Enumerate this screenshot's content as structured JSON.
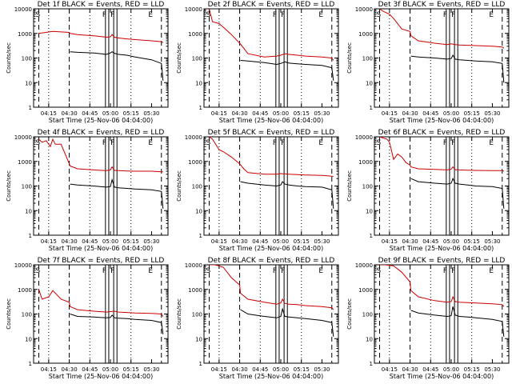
{
  "figure": {
    "ylabel": "Counts/sec",
    "xlabel": "Start Time (25-Nov-06 04:04:00)",
    "xticks": [
      "04:15",
      "04:30",
      "04:45",
      "05:00",
      "05:15",
      "05:30"
    ],
    "yticks": [
      "1",
      "10",
      "100",
      "1000",
      "10000"
    ],
    "marker_labels": [
      "S",
      "F",
      "F",
      "E"
    ]
  },
  "chart_data": [
    {
      "type": "line",
      "title": "Det 1f BLACK = Events, RED = LLD",
      "xlim": [
        4.0667,
        5.7
      ],
      "ylim": [
        1,
        10000
      ],
      "yscale": "log",
      "series": [
        {
          "name": "Events",
          "color": "#000000",
          "x": [
            4.13,
            4.5,
            4.51,
            4.6,
            4.8,
            4.95,
            5.0,
            5.02,
            5.05,
            5.1,
            5.2,
            5.3,
            5.5,
            5.62,
            5.64
          ],
          "y": [
            null,
            null,
            180,
            170,
            160,
            140,
            160,
            180,
            155,
            140,
            130,
            110,
            85,
            60,
            12
          ]
        },
        {
          "name": "LLD",
          "color": "#cc0000",
          "x": [
            4.13,
            4.3,
            4.5,
            4.51,
            4.6,
            4.8,
            4.95,
            5.0,
            5.02,
            5.05,
            5.1,
            5.2,
            5.3,
            5.5,
            5.62,
            5.64
          ],
          "y": [
            1000,
            1200,
            1100,
            1000,
            900,
            800,
            700,
            730,
            900,
            700,
            650,
            600,
            560,
            500,
            460,
            420
          ]
        }
      ]
    },
    {
      "type": "line",
      "title": "Det 2f BLACK = Events, RED = LLD",
      "xlim": [
        4.0667,
        5.7
      ],
      "ylim": [
        1,
        10000
      ],
      "yscale": "log",
      "series": [
        {
          "name": "Events",
          "color": "#000000",
          "x": [
            4.5,
            4.51,
            4.6,
            4.8,
            4.95,
            5.0,
            5.05,
            5.1,
            5.2,
            5.3,
            5.5,
            5.62,
            5.64
          ],
          "y": [
            null,
            80,
            75,
            65,
            55,
            60,
            70,
            62,
            58,
            55,
            50,
            40,
            12
          ]
        },
        {
          "name": "LLD",
          "color": "#cc0000",
          "x": [
            4.13,
            4.17,
            4.25,
            4.3,
            4.4,
            4.5,
            4.55,
            4.6,
            4.8,
            4.95,
            5.0,
            5.05,
            5.1,
            5.2,
            5.3,
            5.5,
            5.62,
            5.64
          ],
          "y": [
            10000,
            3000,
            2500,
            1800,
            900,
            400,
            250,
            150,
            110,
            120,
            130,
            150,
            140,
            130,
            120,
            110,
            100,
            80
          ]
        }
      ]
    },
    {
      "type": "line",
      "title": "Det 3f BLACK = Events, RED = LLD",
      "xlim": [
        4.0667,
        5.7
      ],
      "ylim": [
        1,
        10000
      ],
      "yscale": "log",
      "series": [
        {
          "name": "Events",
          "color": "#000000",
          "x": [
            4.5,
            4.51,
            4.6,
            4.8,
            4.95,
            5.0,
            5.02,
            5.05,
            5.1,
            5.2,
            5.3,
            5.5,
            5.62,
            5.64
          ],
          "y": [
            null,
            120,
            110,
            100,
            90,
            95,
            130,
            90,
            85,
            80,
            75,
            70,
            60,
            10
          ]
        },
        {
          "name": "LLD",
          "color": "#cc0000",
          "x": [
            4.13,
            4.17,
            4.25,
            4.3,
            4.4,
            4.5,
            4.51,
            4.6,
            4.8,
            4.95,
            5.0,
            5.05,
            5.1,
            5.2,
            5.3,
            5.5,
            5.62,
            5.64
          ],
          "y": [
            10000,
            8000,
            6000,
            4000,
            1500,
            1200,
            800,
            500,
            400,
            350,
            380,
            350,
            340,
            330,
            320,
            300,
            280,
            250
          ]
        }
      ]
    },
    {
      "type": "line",
      "title": "Det 4f BLACK = Events, RED = LLD",
      "xlim": [
        4.0667,
        5.7
      ],
      "ylim": [
        1,
        10000
      ],
      "yscale": "log",
      "series": [
        {
          "name": "Events",
          "color": "#000000",
          "x": [
            4.5,
            4.51,
            4.6,
            4.8,
            4.95,
            5.0,
            5.02,
            5.05,
            5.1,
            5.2,
            5.3,
            5.5,
            5.62,
            5.64
          ],
          "y": [
            null,
            120,
            110,
            100,
            90,
            95,
            180,
            90,
            85,
            80,
            75,
            70,
            60,
            12
          ]
        },
        {
          "name": "LLD",
          "color": "#cc0000",
          "x": [
            4.13,
            4.17,
            4.22,
            4.27,
            4.3,
            4.33,
            4.4,
            4.5,
            4.51,
            4.6,
            4.8,
            4.95,
            5.0,
            5.02,
            5.05,
            5.1,
            5.2,
            5.3,
            5.5,
            5.62,
            5.64
          ],
          "y": [
            8000,
            6000,
            7000,
            4000,
            8000,
            5000,
            5000,
            800,
            650,
            500,
            450,
            420,
            450,
            600,
            430,
            420,
            410,
            400,
            400,
            380,
            380
          ]
        }
      ]
    },
    {
      "type": "line",
      "title": "Det 5f BLACK = Events, RED = LLD",
      "xlim": [
        4.0667,
        5.7
      ],
      "ylim": [
        1,
        10000
      ],
      "yscale": "log",
      "series": [
        {
          "name": "Events",
          "color": "#000000",
          "x": [
            4.5,
            4.51,
            4.6,
            4.8,
            4.95,
            5.0,
            5.02,
            5.05,
            5.1,
            5.2,
            5.3,
            5.5,
            5.62,
            5.64
          ],
          "y": [
            null,
            150,
            130,
            110,
            100,
            110,
            150,
            120,
            110,
            100,
            95,
            90,
            70,
            12
          ]
        },
        {
          "name": "LLD",
          "color": "#cc0000",
          "x": [
            4.13,
            4.17,
            4.25,
            4.3,
            4.4,
            4.5,
            4.55,
            4.6,
            4.8,
            4.95,
            5.0,
            5.05,
            5.1,
            5.2,
            5.3,
            5.5,
            5.62,
            5.64
          ],
          "y": [
            10000,
            8000,
            3000,
            2500,
            1500,
            800,
            500,
            350,
            300,
            300,
            320,
            310,
            300,
            290,
            280,
            270,
            250,
            240
          ]
        }
      ]
    },
    {
      "type": "line",
      "title": "Det 6f BLACK = Events, RED = LLD",
      "xlim": [
        4.0667,
        5.7
      ],
      "ylim": [
        1,
        10000
      ],
      "yscale": "log",
      "series": [
        {
          "name": "Events",
          "color": "#000000",
          "x": [
            4.5,
            4.51,
            4.6,
            4.8,
            4.95,
            5.0,
            5.02,
            5.05,
            5.1,
            5.2,
            5.3,
            5.5,
            5.62,
            5.64
          ],
          "y": [
            null,
            200,
            150,
            130,
            120,
            130,
            200,
            130,
            120,
            110,
            100,
            95,
            80,
            12
          ]
        },
        {
          "name": "LLD",
          "color": "#cc0000",
          "x": [
            4.13,
            4.17,
            4.22,
            4.25,
            4.3,
            4.35,
            4.4,
            4.45,
            4.5,
            4.51,
            4.6,
            4.8,
            4.95,
            5.0,
            5.02,
            5.05,
            5.1,
            5.2,
            5.3,
            5.5,
            5.62,
            5.64
          ],
          "y": [
            10000,
            9000,
            8000,
            6000,
            1200,
            2000,
            1500,
            900,
            700,
            600,
            500,
            470,
            450,
            480,
            600,
            460,
            450,
            440,
            430,
            420,
            420,
            400
          ]
        }
      ]
    },
    {
      "type": "line",
      "title": "Det 7f BLACK = Events, RED = LLD",
      "xlim": [
        4.0667,
        5.7
      ],
      "ylim": [
        1,
        10000
      ],
      "yscale": "log",
      "series": [
        {
          "name": "Events",
          "color": "#000000",
          "x": [
            4.5,
            4.51,
            4.6,
            4.8,
            4.95,
            5.0,
            5.02,
            5.05,
            5.1,
            5.2,
            5.3,
            5.5,
            5.62,
            5.64
          ],
          "y": [
            null,
            100,
            80,
            75,
            70,
            72,
            90,
            70,
            68,
            65,
            60,
            55,
            45,
            15
          ]
        },
        {
          "name": "LLD",
          "color": "#cc0000",
          "x": [
            4.13,
            4.17,
            4.25,
            4.3,
            4.4,
            4.5,
            4.51,
            4.6,
            4.8,
            4.95,
            5.0,
            5.05,
            5.1,
            5.2,
            5.3,
            5.5,
            5.62,
            5.64
          ],
          "y": [
            1000,
            400,
            500,
            900,
            400,
            300,
            200,
            150,
            130,
            120,
            125,
            130,
            120,
            115,
            110,
            105,
            100,
            80
          ]
        }
      ]
    },
    {
      "type": "line",
      "title": "Det 8f BLACK = Events, RED = LLD",
      "xlim": [
        4.0667,
        5.7
      ],
      "ylim": [
        1,
        10000
      ],
      "yscale": "log",
      "series": [
        {
          "name": "Events",
          "color": "#000000",
          "x": [
            4.5,
            4.51,
            4.6,
            4.8,
            4.95,
            5.0,
            5.02,
            5.05,
            5.1,
            5.2,
            5.3,
            5.5,
            5.62,
            5.64
          ],
          "y": [
            null,
            150,
            100,
            80,
            70,
            80,
            160,
            80,
            75,
            70,
            65,
            55,
            45,
            12
          ]
        },
        {
          "name": "LLD",
          "color": "#cc0000",
          "x": [
            4.13,
            4.2,
            4.3,
            4.4,
            4.5,
            4.51,
            4.6,
            4.8,
            4.95,
            5.0,
            5.02,
            5.05,
            5.1,
            5.2,
            5.3,
            5.5,
            5.62,
            5.64
          ],
          "y": [
            10000,
            10000,
            8000,
            3000,
            1500,
            700,
            400,
            300,
            250,
            280,
            400,
            270,
            250,
            240,
            220,
            200,
            180,
            150
          ]
        }
      ]
    },
    {
      "type": "line",
      "title": "Det 9f BLACK = Events, RED = LLD",
      "xlim": [
        4.0667,
        5.7
      ],
      "ylim": [
        1,
        10000
      ],
      "yscale": "log",
      "series": [
        {
          "name": "Events",
          "color": "#000000",
          "x": [
            4.5,
            4.51,
            4.6,
            4.8,
            4.95,
            5.0,
            5.02,
            5.05,
            5.1,
            5.2,
            5.3,
            5.5,
            5.62,
            5.64
          ],
          "y": [
            null,
            140,
            110,
            90,
            80,
            85,
            200,
            90,
            80,
            75,
            70,
            60,
            50,
            12
          ]
        },
        {
          "name": "LLD",
          "color": "#cc0000",
          "x": [
            4.13,
            4.2,
            4.3,
            4.4,
            4.5,
            4.51,
            4.6,
            4.8,
            4.95,
            5.0,
            5.02,
            5.05,
            5.1,
            5.2,
            5.3,
            5.5,
            5.62,
            5.64
          ],
          "y": [
            10000,
            10000,
            9000,
            5000,
            2000,
            900,
            500,
            350,
            300,
            320,
            500,
            320,
            300,
            290,
            280,
            260,
            240,
            200
          ]
        }
      ]
    }
  ]
}
